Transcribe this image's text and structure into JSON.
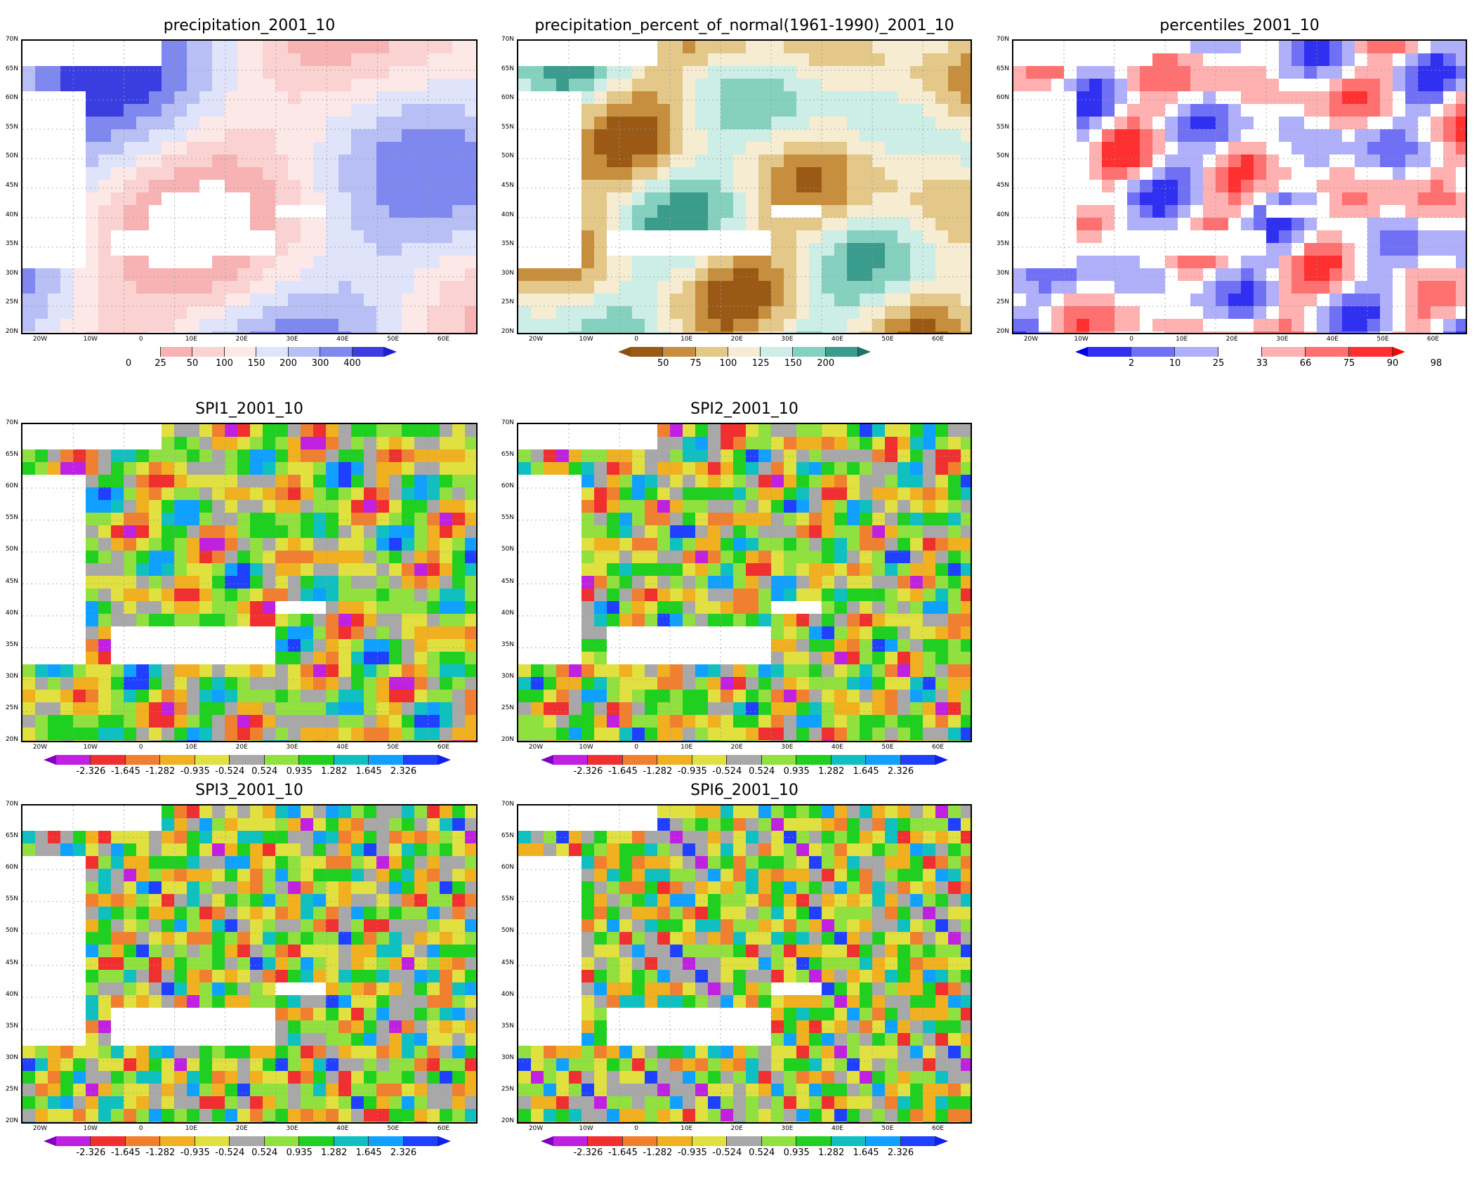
{
  "lat_labels": [
    "70N",
    "65N",
    "60N",
    "55N",
    "50N",
    "45N",
    "40N",
    "35N",
    "30N",
    "25N",
    "20N"
  ],
  "lon_labels": [
    "20W",
    "10W",
    "0",
    "10E",
    "20E",
    "30E",
    "40E",
    "50E",
    "60E"
  ],
  "panels": [
    {
      "title": "precipitation_2001_10",
      "colorbar": {
        "colors": [
          "#ffffff",
          "#f7b3b3",
          "#fbd2d2",
          "#fde8e8",
          "#e0e4fb",
          "#b8bff5",
          "#7f88ee",
          "#3a3ee0"
        ],
        "left_arrow_color": "#ffffff",
        "right_arrow_color": "#1e1ed0",
        "labels": [
          "0",
          "25",
          "50",
          "100",
          "150",
          "200",
          "300",
          "400"
        ]
      }
    },
    {
      "title": "precipitation_percent_of_normal(1961-1990)_2001_10",
      "colorbar": {
        "colors": [
          "#9a5a16",
          "#c78e3e",
          "#e4c88a",
          "#f5ecd2",
          "#cdeee6",
          "#86d0c0",
          "#3a9c8c"
        ],
        "left_arrow_color": "#8a4e10",
        "right_arrow_color": "#1e7466",
        "labels": [
          "50",
          "75",
          "100",
          "125",
          "150",
          "200"
        ]
      }
    },
    {
      "title": "percentiles_2001_10",
      "colorbar": {
        "colors": [
          "#3030f0",
          "#7070f5",
          "#b0b0fa",
          "#ffffff",
          "#ffb0b0",
          "#ff7070",
          "#ff3030"
        ],
        "left_arrow_color": "#0000e0",
        "right_arrow_color": "#ff0000",
        "labels": [
          "2",
          "10",
          "25",
          "33",
          "66",
          "75",
          "90",
          "98"
        ]
      }
    },
    {
      "title": "SPI1_2001_10",
      "colorbar": {
        "colors": [
          "#c020e0",
          "#f03030",
          "#f08030",
          "#f0b020",
          "#e0e040",
          "#a8a8a8",
          "#90e040",
          "#20d020",
          "#10c0c0",
          "#10a0ff",
          "#2040ff"
        ],
        "left_arrow_color": "#8000c0",
        "right_arrow_color": "#1020f0",
        "labels": [
          "-2.326",
          "-1.645",
          "-1.282",
          "-0.935",
          "-0.524",
          "0.524",
          "0.935",
          "1.282",
          "1.645",
          "2.326"
        ]
      }
    },
    {
      "title": "SPI2_2001_10",
      "colorbar": {
        "colors": [
          "#c020e0",
          "#f03030",
          "#f08030",
          "#f0b020",
          "#e0e040",
          "#a8a8a8",
          "#90e040",
          "#20d020",
          "#10c0c0",
          "#10a0ff",
          "#2040ff"
        ],
        "left_arrow_color": "#8000c0",
        "right_arrow_color": "#1020f0",
        "labels": [
          "-2.326",
          "-1.645",
          "-1.282",
          "-0.935",
          "-0.524",
          "0.524",
          "0.935",
          "1.282",
          "1.645",
          "2.326"
        ]
      }
    },
    {
      "title": "SPI3_2001_10",
      "colorbar": {
        "colors": [
          "#c020e0",
          "#f03030",
          "#f08030",
          "#f0b020",
          "#e0e040",
          "#a8a8a8",
          "#90e040",
          "#20d020",
          "#10c0c0",
          "#10a0ff",
          "#2040ff"
        ],
        "left_arrow_color": "#8000c0",
        "right_arrow_color": "#1020f0",
        "labels": [
          "-2.326",
          "-1.645",
          "-1.282",
          "-0.935",
          "-0.524",
          "0.524",
          "0.935",
          "1.282",
          "1.645",
          "2.326"
        ]
      }
    },
    {
      "title": "SPI6_2001_10",
      "colorbar": {
        "colors": [
          "#c020e0",
          "#f03030",
          "#f08030",
          "#f0b020",
          "#e0e040",
          "#a8a8a8",
          "#90e040",
          "#20d020",
          "#10c0c0",
          "#10a0ff",
          "#2040ff"
        ],
        "left_arrow_color": "#8000c0",
        "right_arrow_color": "#1020f0",
        "labels": [
          "-2.326",
          "-1.645",
          "-1.282",
          "-0.935",
          "-0.524",
          "0.524",
          "0.935",
          "1.282",
          "1.645",
          "2.326"
        ]
      }
    }
  ]
}
